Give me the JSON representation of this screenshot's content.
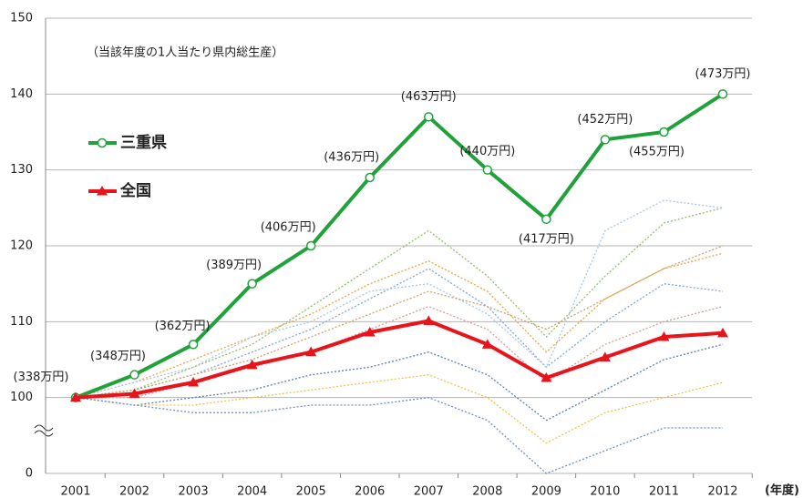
{
  "chart_data": {
    "type": "line",
    "subtitle": "（当該年度の1人当たり県内総生産）",
    "x_label": "(年度)",
    "categories": [
      "2001",
      "2002",
      "2003",
      "2004",
      "2005",
      "2006",
      "2007",
      "2008",
      "2009",
      "2010",
      "2011",
      "2012"
    ],
    "ylim": [
      0,
      150
    ],
    "y_break": [
      0,
      90
    ],
    "yticks": [
      0,
      100,
      110,
      120,
      130,
      140,
      150
    ],
    "grid": true,
    "series": [
      {
        "color": "#7ea6d6",
        "style": "dotted",
        "values": [
          100,
          101,
          103,
          106,
          109,
          113,
          117,
          112,
          104,
          110,
          115,
          114
        ]
      },
      {
        "color": "#e8a544",
        "style": "dotted",
        "values": [
          100,
          102,
          105,
          108,
          111,
          115,
          118,
          114,
          106,
          113,
          117,
          119
        ]
      },
      {
        "color": "#8fbf6a",
        "style": "dotted",
        "values": [
          100,
          101,
          104,
          107,
          112,
          117,
          122,
          116,
          108,
          116,
          123,
          125
        ]
      },
      {
        "color": "#5b7fba",
        "style": "dotted",
        "values": [
          100,
          99,
          100,
          101,
          103,
          104,
          106,
          103,
          97,
          101,
          105,
          107
        ]
      },
      {
        "color": "#d99a9a",
        "style": "dotted",
        "values": [
          100,
          100,
          102,
          104,
          106,
          109,
          112,
          109,
          102,
          107,
          110,
          112
        ]
      },
      {
        "color": "#f0c24e",
        "style": "dotted",
        "values": [
          100,
          99,
          99,
          100,
          101,
          102,
          103,
          100,
          94,
          98,
          100,
          102
        ]
      },
      {
        "color": "#6f8fcf",
        "style": "dotted",
        "values": [
          100,
          99,
          98,
          98,
          99,
          99,
          100,
          97,
          90,
          93,
          96,
          96
        ]
      },
      {
        "color": "#a8c7e8",
        "style": "dotted",
        "values": [
          100,
          102,
          104,
          108,
          110,
          114,
          115,
          111,
          104,
          122,
          126,
          125
        ]
      },
      {
        "color": "#c7a46b",
        "style": "dotted",
        "values": [
          100,
          101,
          103,
          105,
          108,
          111,
          114,
          112,
          109,
          113,
          117,
          120
        ]
      },
      {
        "name": "三重県",
        "color": "#1fa23a",
        "marker": "circle",
        "values": [
          100,
          103,
          107,
          115,
          120,
          129,
          137,
          130,
          123.5,
          134,
          135,
          140
        ],
        "point_labels": [
          "(338万円)",
          "(348万円)",
          "(362万円)",
          "(389万円)",
          "(406万円)",
          "(436万円)",
          "(463万円)",
          "(440万円)",
          "(417万円)",
          "(452万円)",
          "(455万円)",
          "(473万円)"
        ]
      },
      {
        "name": "全国",
        "color": "#e8141b",
        "marker": "triangle",
        "values": [
          100,
          100.5,
          102,
          104.3,
          106,
          108.6,
          110.1,
          107,
          102.6,
          105.3,
          108,
          108.5
        ]
      }
    ]
  }
}
